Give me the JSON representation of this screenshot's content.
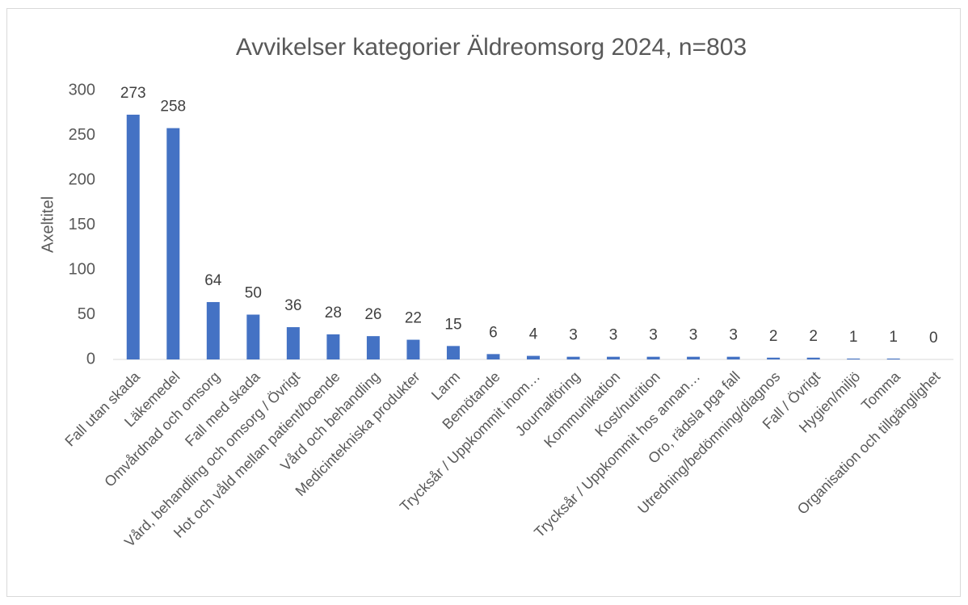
{
  "chart_data": {
    "type": "bar",
    "title": "Avvikelser kategorier Äldreomsorg 2024, n=803",
    "y_label": "Axeltitel",
    "categories": [
      "Fall utan skada",
      "Läkemedel",
      "Omvårdnad och omsorg",
      "Fall med skada",
      "Vård, behandling och omsorg / Övrigt",
      "Hot och våld mellan patient/boende",
      "Vård och behandling",
      "Medicintekniska produkter",
      "Larm",
      "Bemötande",
      "Trycksår / Uppkommit inom…",
      "Journalföring",
      "Kommunikation",
      "Kost/nutrition",
      "Trycksår / Uppkommit hos annan…",
      "Oro, rädsla pga fall",
      "Utredning/bedömning/diagnos",
      "Fall / Övrigt",
      "Hygien/miljö",
      "Tomma",
      "Organisation och tillgänglighet"
    ],
    "values": [
      273,
      258,
      64,
      50,
      36,
      28,
      26,
      22,
      15,
      6,
      4,
      3,
      3,
      3,
      3,
      3,
      2,
      2,
      1,
      1,
      0
    ],
    "color": "#4472c4",
    "ylim": [
      0,
      300
    ],
    "yticks": [
      0,
      50,
      100,
      150,
      200,
      250,
      300
    ],
    "grid": false
  }
}
